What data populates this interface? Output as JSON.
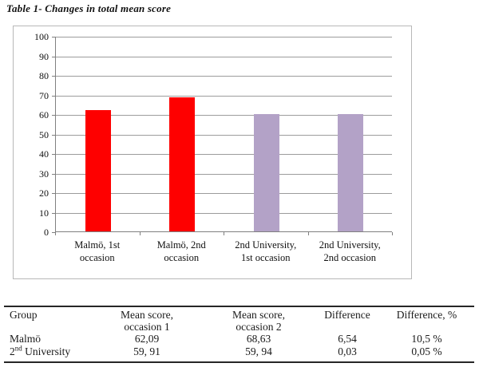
{
  "document": {
    "caption": "Table 1- Changes in total mean score"
  },
  "chart_data": {
    "type": "bar",
    "title": "",
    "xlabel": "",
    "ylabel": "",
    "categories": [
      "Malmö, 1st\noccasion",
      "Malmö, 2nd\noccasion",
      "2nd University,\n1st occasion",
      "2nd University,\n2nd occasion"
    ],
    "values": [
      62.09,
      68.63,
      59.91,
      59.94
    ],
    "bar_colors": [
      "#fe0000",
      "#fe0000",
      "#b3a2c7",
      "#b3a2c7"
    ],
    "ylim": [
      0,
      100
    ],
    "yticks": [
      0,
      10,
      20,
      30,
      40,
      50,
      60,
      70,
      80,
      90,
      100
    ],
    "grid": true,
    "legend": false,
    "plot_background": "#ffffff",
    "gridline_color": "#9c9c9c",
    "axis_color": "#808080"
  },
  "summary_table": {
    "headers": [
      "Group",
      "Mean score,\noccasion 1",
      "Mean score,\noccasion 2",
      "Difference",
      "Difference, %"
    ],
    "rows": [
      {
        "group": "Malmö",
        "group_sup": "",
        "group_rest": "",
        "mean1": "62,09",
        "mean2": "68,63",
        "difference": "6,54",
        "difference_pct": "10,5 %"
      },
      {
        "group": "2",
        "group_sup": "nd",
        "group_rest": " University",
        "mean1": "59, 91",
        "mean2": "59, 94",
        "difference": "0,03",
        "difference_pct": "0,05 %"
      }
    ]
  }
}
